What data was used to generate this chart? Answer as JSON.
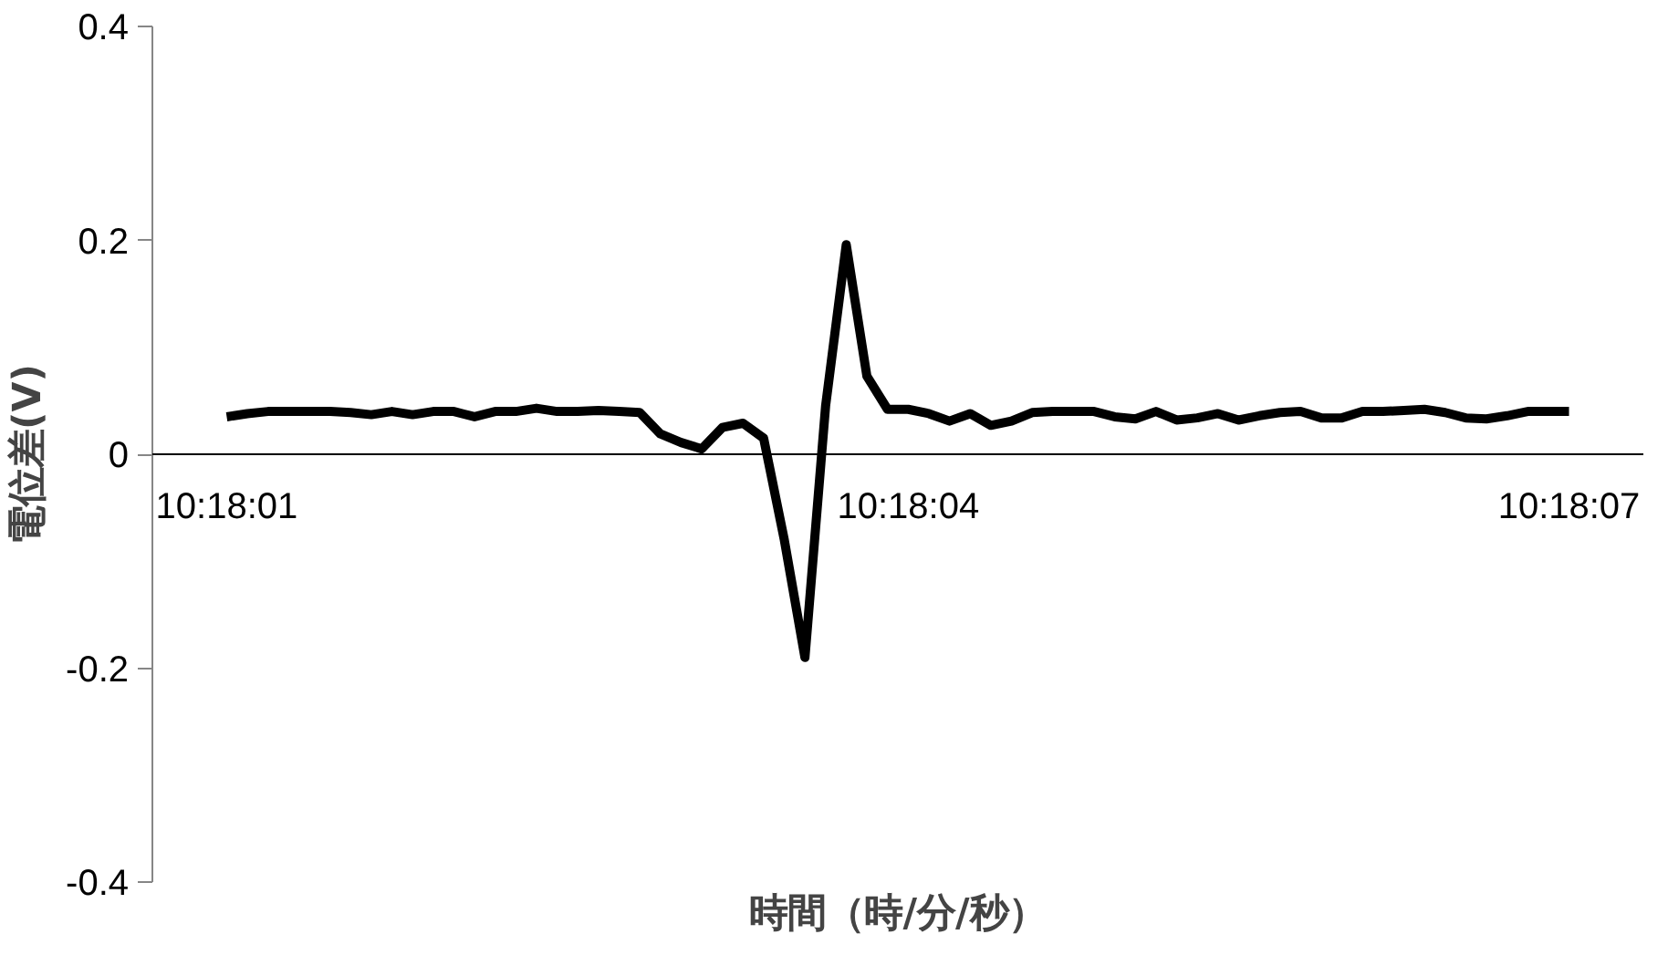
{
  "chart_data": {
    "type": "line",
    "xlabel": "時間（時/分/秒）",
    "ylabel": "電位差(V)",
    "categories": [
      "10:18:01",
      null,
      null,
      null,
      null,
      null,
      null,
      null,
      null,
      null,
      null,
      null,
      null,
      null,
      null,
      null,
      null,
      null,
      null,
      null,
      null,
      null,
      null,
      null,
      null,
      null,
      null,
      null,
      null,
      null,
      null,
      null,
      null,
      "10:18:04",
      null,
      null,
      null,
      null,
      null,
      null,
      null,
      null,
      null,
      null,
      null,
      null,
      null,
      null,
      null,
      null,
      null,
      null,
      null,
      null,
      null,
      null,
      null,
      null,
      null,
      null,
      null,
      null,
      null,
      null,
      null,
      "10:18:07"
    ],
    "series": [
      {
        "color": "#000000",
        "values": [
          0.035,
          0.038,
          0.04,
          0.04,
          0.04,
          0.04,
          0.039,
          0.037,
          0.04,
          0.037,
          0.04,
          0.04,
          0.035,
          0.04,
          0.04,
          0.043,
          0.04,
          0.04,
          0.041,
          0.04,
          0.039,
          0.019,
          0.011,
          0.005,
          0.025,
          0.029,
          0.015,
          -0.08,
          -0.19,
          0.045,
          0.196,
          0.073,
          0.042,
          0.042,
          0.038,
          0.031,
          0.038,
          0.027,
          0.031,
          0.039,
          0.04,
          0.04,
          0.04,
          0.035,
          0.033,
          0.04,
          0.032,
          0.034,
          0.038,
          0.032,
          0.036,
          0.039,
          0.04,
          0.034,
          0.034,
          0.04,
          0.04,
          0.041,
          0.042,
          0.039,
          0.034,
          0.033,
          0.036,
          0.04,
          0.04,
          0.04
        ]
      }
    ],
    "ylim": [
      -0.4,
      0.4
    ],
    "yticks": [
      -0.4,
      -0.2,
      0,
      0.2,
      0.4
    ],
    "grid": false,
    "marker": "none",
    "line_style": "solid"
  }
}
